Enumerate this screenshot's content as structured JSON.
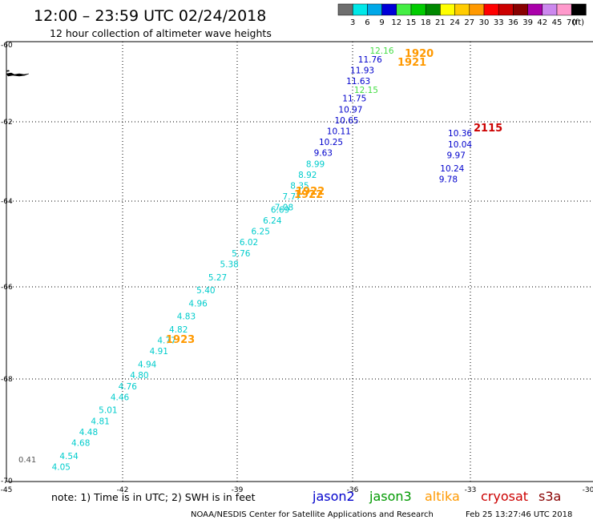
{
  "header": {
    "title": "12:00 – 23:59 UTC 02/24/2018",
    "subtitle": "12 hour collection of altimeter wave heights"
  },
  "legend": {
    "labels": [
      "3",
      "6",
      "9",
      "12",
      "15",
      "18",
      "21",
      "24",
      "27",
      "30",
      "33",
      "36",
      "39",
      "42",
      "45",
      "70"
    ],
    "unit": "(ft)",
    "colors": [
      "#6e6e6e",
      "#00e8e8",
      "#00a8e8",
      "#0000d8",
      "#44ee44",
      "#00cc00",
      "#008800",
      "#ffff00",
      "#ffcc00",
      "#ff9900",
      "#ff0000",
      "#cc0000",
      "#880000",
      "#aa00aa",
      "#cc88ee",
      "#ff99cc",
      "#000000"
    ]
  },
  "axes": {
    "lon_labels": [
      "-45",
      "-42",
      "-39",
      "-36",
      "-33",
      "-30"
    ],
    "lat_labels": [
      "-60",
      "-62",
      "-64",
      "-66",
      "-68",
      "-70"
    ]
  },
  "stray_label": "0.41",
  "footer": {
    "note": "note:  1) Time is in UTC;  2) SWH is in feet",
    "credit": "NOAA/NESDIS Center for Satellite Applications and Research",
    "timestamp": "Feb 25 13:27:46 UTC 2018",
    "satellites": [
      {
        "name": "jason2",
        "color": "#0000cc"
      },
      {
        "name": "jason3",
        "color": "#009900"
      },
      {
        "name": "altika",
        "color": "#ff9900"
      },
      {
        "name": "cryosat",
        "color": "#cc0000"
      },
      {
        "name": "s3a",
        "color": "#880000"
      }
    ]
  },
  "pass_times": [
    {
      "text": "1920",
      "color": "#ff9900"
    },
    {
      "text": "1921",
      "color": "#ff9900"
    },
    {
      "text": "1922",
      "color": "#ff9900"
    },
    {
      "text": "1922",
      "color": "#ff9900"
    },
    {
      "text": "1923",
      "color": "#ff9900"
    },
    {
      "text": "2115",
      "color": "#cc0000"
    }
  ],
  "chart_data": {
    "type": "scatter",
    "xlabel": "",
    "ylabel": "",
    "xlim": [
      -45,
      -30
    ],
    "ylim": [
      -70,
      -60
    ],
    "grid": true,
    "x_ticks": [
      -45,
      -42,
      -39,
      -36,
      -33,
      -30
    ],
    "y_ticks": [
      -60,
      -62,
      -64,
      -66,
      -68,
      -70
    ],
    "series": [
      {
        "color": "#44dd44",
        "points": [
          {
            "lon": -35.4,
            "lat": -60.2,
            "swh": "12.16"
          },
          {
            "lon": -35.8,
            "lat": -61.1,
            "swh": "12.15"
          }
        ]
      },
      {
        "color": "#0000cc",
        "points": [
          {
            "lon": -35.7,
            "lat": -60.4,
            "swh": "11.76"
          },
          {
            "lon": -35.9,
            "lat": -60.65,
            "swh": "11.93"
          },
          {
            "lon": -36.0,
            "lat": -60.9,
            "swh": "11.63"
          },
          {
            "lon": -36.1,
            "lat": -61.3,
            "swh": "11.75"
          },
          {
            "lon": -36.2,
            "lat": -61.55,
            "swh": "10.97"
          },
          {
            "lon": -36.3,
            "lat": -61.8,
            "swh": "10.65"
          },
          {
            "lon": -36.5,
            "lat": -62.05,
            "swh": "10.11"
          },
          {
            "lon": -36.7,
            "lat": -62.3,
            "swh": "10.25"
          },
          {
            "lon": -36.9,
            "lat": -62.55,
            "swh": "9.63"
          },
          {
            "lon": -33.4,
            "lat": -62.1,
            "swh": "10.36"
          },
          {
            "lon": -33.4,
            "lat": -62.35,
            "swh": "10.04"
          },
          {
            "lon": -33.5,
            "lat": -62.6,
            "swh": "9.97"
          },
          {
            "lon": -33.6,
            "lat": -62.9,
            "swh": "10.24"
          },
          {
            "lon": -33.7,
            "lat": -63.15,
            "swh": "9.78"
          }
        ]
      },
      {
        "color": "#00cccc",
        "points": [
          {
            "lon": -37.1,
            "lat": -62.8,
            "swh": "8.99"
          },
          {
            "lon": -37.3,
            "lat": -63.05,
            "swh": "8.92"
          },
          {
            "lon": -37.5,
            "lat": -63.3,
            "swh": "8.35"
          },
          {
            "lon": -37.7,
            "lat": -63.55,
            "swh": "7.77"
          },
          {
            "lon": -37.9,
            "lat": -63.8,
            "swh": "7.08"
          },
          {
            "lon": -38.0,
            "lat": -63.85,
            "swh": "6.69"
          },
          {
            "lon": -38.2,
            "lat": -64.1,
            "swh": "6.24"
          },
          {
            "lon": -38.5,
            "lat": -64.35,
            "swh": "6.25"
          },
          {
            "lon": -38.8,
            "lat": -64.6,
            "swh": "6.02"
          },
          {
            "lon": -39.0,
            "lat": -64.85,
            "swh": "5.76"
          },
          {
            "lon": -39.3,
            "lat": -65.1,
            "swh": "5.38"
          },
          {
            "lon": -39.6,
            "lat": -65.4,
            "swh": "5.27"
          },
          {
            "lon": -39.9,
            "lat": -65.7,
            "swh": "5.40"
          },
          {
            "lon": -40.1,
            "lat": -66.0,
            "swh": "4.96"
          },
          {
            "lon": -40.4,
            "lat": -66.3,
            "swh": "4.83"
          },
          {
            "lon": -40.6,
            "lat": -66.6,
            "swh": "4.82"
          },
          {
            "lon": -40.9,
            "lat": -66.85,
            "swh": "4.77"
          },
          {
            "lon": -41.1,
            "lat": -67.1,
            "swh": "4.91"
          },
          {
            "lon": -41.4,
            "lat": -67.4,
            "swh": "4.94"
          },
          {
            "lon": -41.6,
            "lat": -67.65,
            "swh": "4.80"
          },
          {
            "lon": -41.9,
            "lat": -67.9,
            "swh": "4.76"
          },
          {
            "lon": -42.1,
            "lat": -68.15,
            "swh": "4.46"
          },
          {
            "lon": -42.4,
            "lat": -68.45,
            "swh": "5.01"
          },
          {
            "lon": -42.6,
            "lat": -68.7,
            "swh": "4.81"
          },
          {
            "lon": -42.9,
            "lat": -68.95,
            "swh": "4.48"
          },
          {
            "lon": -43.1,
            "lat": -69.2,
            "swh": "4.68"
          },
          {
            "lon": -43.4,
            "lat": -69.5,
            "swh": "4.54"
          },
          {
            "lon": -43.6,
            "lat": -69.75,
            "swh": "4.05"
          }
        ]
      }
    ]
  }
}
